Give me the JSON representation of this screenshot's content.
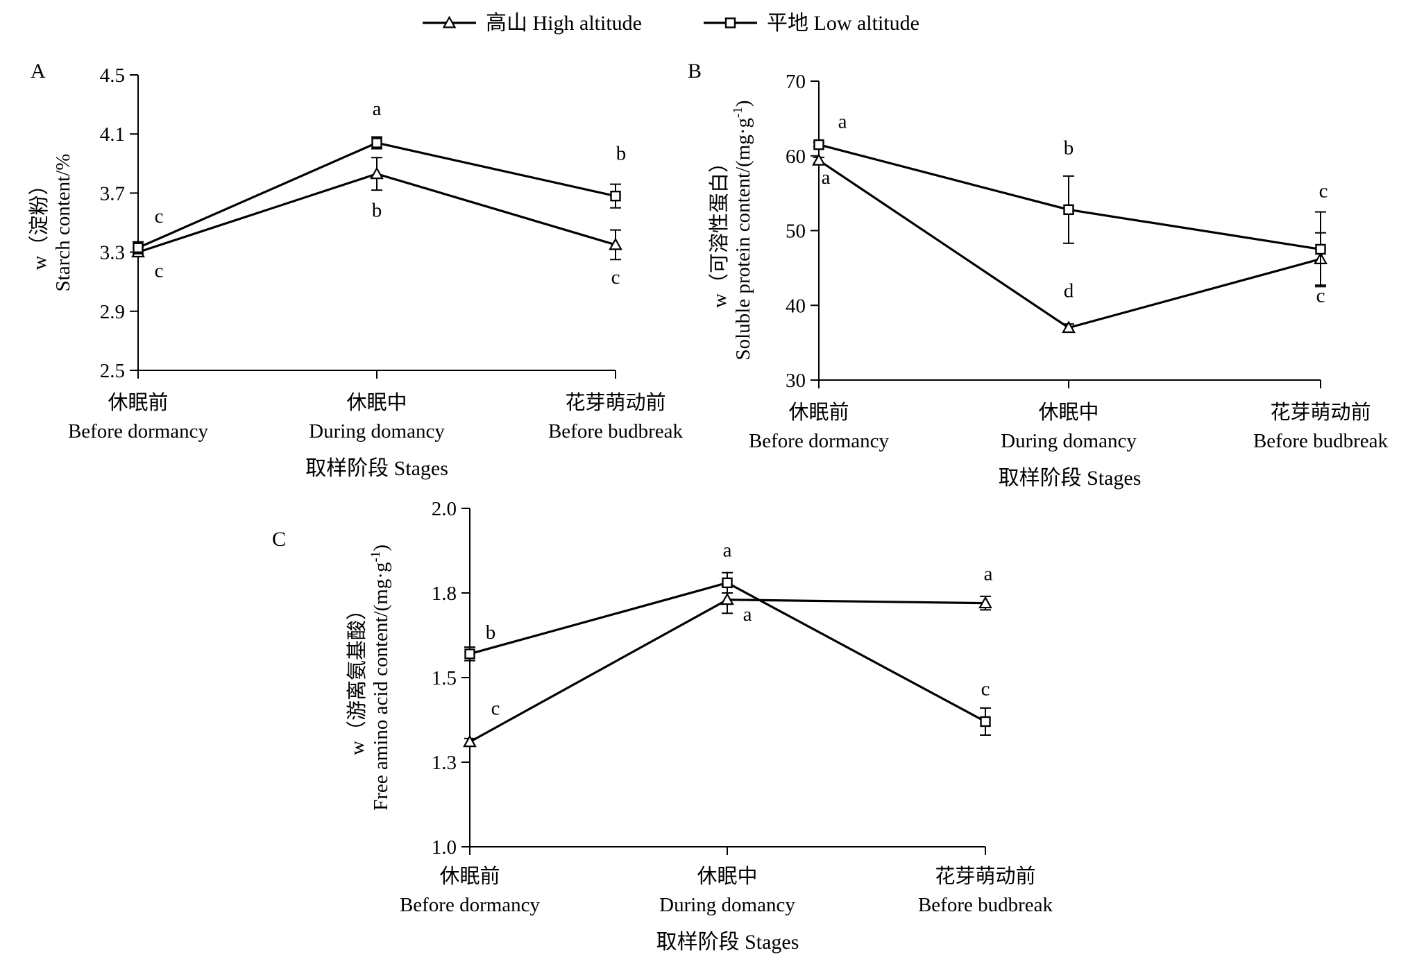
{
  "legend": [
    {
      "label": "高山 High altitude",
      "marker": "triangle"
    },
    {
      "label": "平地 Low altitude",
      "marker": "square"
    }
  ],
  "chart_data": [
    {
      "panel": "A",
      "type": "line",
      "categories": [
        {
          "zh": "休眠前",
          "en": "Before dormancy"
        },
        {
          "zh": "休眠中",
          "en": "During domancy"
        },
        {
          "zh": "花芽萌动前",
          "en": "Before budbreak"
        }
      ],
      "xlabel": "取样阶段 Stages",
      "ylabel_line1": "w（淀粉）",
      "ylabel_line2": "Starch content/%",
      "ylim": [
        2.5,
        4.5
      ],
      "yticks": [
        "2.5",
        "2.9",
        "3.3",
        "3.7",
        "4.1",
        "4.5"
      ],
      "series": [
        {
          "name": "高山 High altitude",
          "marker": "triangle",
          "values": [
            3.3,
            3.83,
            3.35
          ],
          "errors": [
            0.03,
            0.11,
            0.1
          ],
          "labels": [
            "c",
            "b",
            "c"
          ]
        },
        {
          "name": "平地 Low altitude",
          "marker": "square",
          "values": [
            3.33,
            4.04,
            3.68
          ],
          "errors": [
            0.04,
            0.04,
            0.08
          ],
          "labels": [
            "c",
            "a",
            "b"
          ]
        }
      ]
    },
    {
      "panel": "B",
      "type": "line",
      "categories": [
        {
          "zh": "休眠前",
          "en": "Before dormancy"
        },
        {
          "zh": "休眠中",
          "en": "During domancy"
        },
        {
          "zh": "花芽萌动前",
          "en": "Before budbreak"
        }
      ],
      "xlabel": "取样阶段 Stages",
      "ylabel_line1": "w（可溶性蛋白）",
      "ylabel_line2": "Soluble protein content/(mg·g",
      "ylabel_sup": "-1",
      "ylabel_tail": ")",
      "ylim": [
        30,
        70
      ],
      "yticks": [
        "30",
        "40",
        "50",
        "60",
        "70"
      ],
      "series": [
        {
          "name": "高山 High altitude",
          "marker": "triangle",
          "values": [
            59.4,
            37.0,
            46.2
          ],
          "errors": [
            0.4,
            0.5,
            3.5
          ],
          "labels": [
            "a",
            "d",
            "c"
          ]
        },
        {
          "name": "平地 Low altitude",
          "marker": "square",
          "values": [
            61.5,
            52.8,
            47.5
          ],
          "errors": [
            0.3,
            4.5,
            5.0
          ],
          "labels": [
            "a",
            "b",
            "c"
          ]
        }
      ]
    },
    {
      "panel": "C",
      "type": "line",
      "categories": [
        {
          "zh": "休眠前",
          "en": "Before dormancy"
        },
        {
          "zh": "休眠中",
          "en": "During domancy"
        },
        {
          "zh": "花芽萌动前",
          "en": "Before budbreak"
        }
      ],
      "xlabel": "取样阶段 Stages",
      "ylabel_line1": "w（游离氨基酸）",
      "ylabel_line2": "Free amino acid content/(mg·g",
      "ylabel_sup": "-1",
      "ylabel_tail": ")",
      "ylim": [
        1.0,
        2.0
      ],
      "yticks": [
        "1.0",
        "1.3",
        "1.5",
        "1.8",
        "2.0"
      ],
      "ytick_values": [
        1.0,
        1.25,
        1.5,
        1.75,
        2.0
      ],
      "series": [
        {
          "name": "高山 High altitude",
          "marker": "triangle",
          "values": [
            1.31,
            1.73,
            1.72
          ],
          "errors": [
            0.01,
            0.04,
            0.02
          ],
          "labels": [
            "c",
            "a",
            "a"
          ]
        },
        {
          "name": "平地 Low altitude",
          "marker": "square",
          "values": [
            1.57,
            1.78,
            1.37
          ],
          "errors": [
            0.02,
            0.03,
            0.04
          ],
          "labels": [
            "b",
            "a",
            "c"
          ]
        }
      ]
    }
  ]
}
